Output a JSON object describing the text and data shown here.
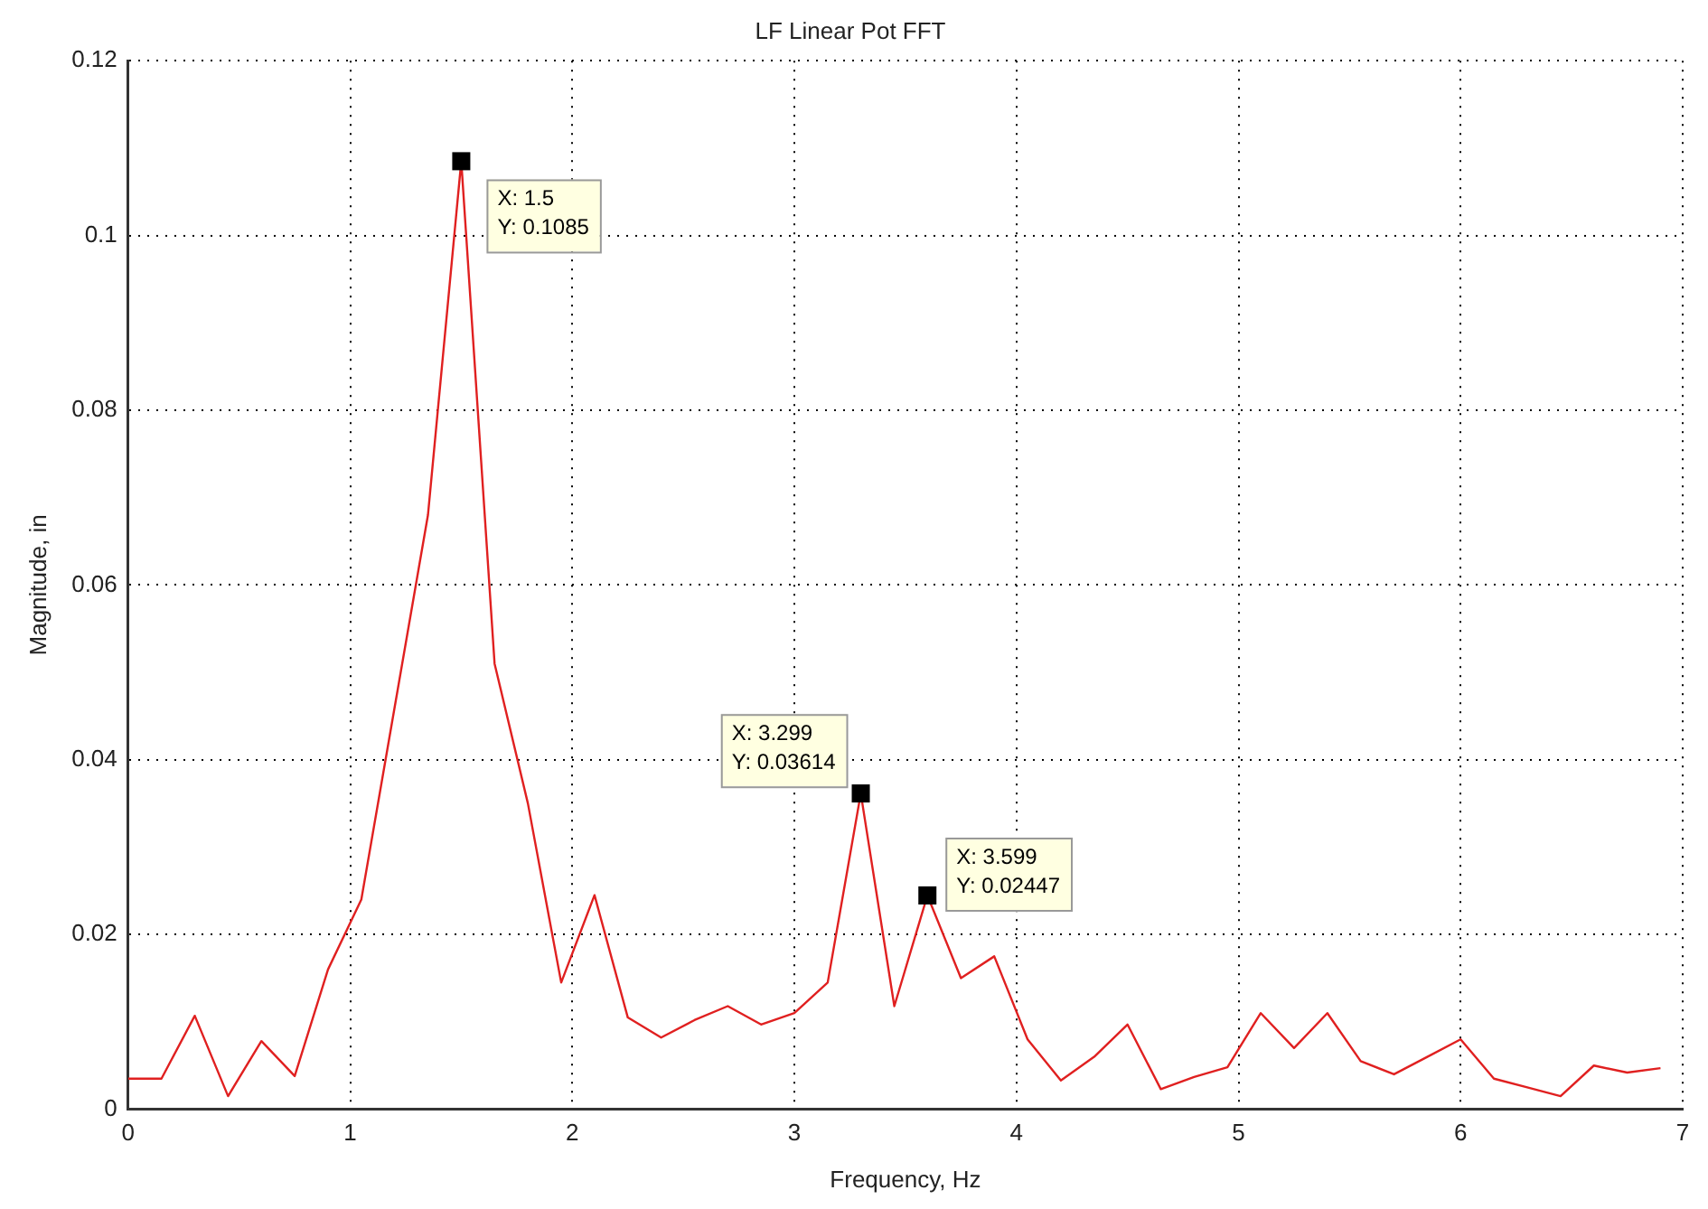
{
  "chart_data": {
    "type": "line",
    "title": "LF Linear Pot FFT",
    "xlabel": "Frequency, Hz",
    "ylabel": "Magnitude, in",
    "x": [
      0,
      0.15,
      0.3,
      0.45,
      0.6,
      0.75,
      0.9,
      1.05,
      1.2,
      1.35,
      1.5,
      1.65,
      1.8,
      1.95,
      2.1,
      2.25,
      2.4,
      2.55,
      2.7,
      2.85,
      3.0,
      3.15,
      3.299,
      3.45,
      3.599,
      3.75,
      3.9,
      4.05,
      4.2,
      4.35,
      4.5,
      4.65,
      4.8,
      4.95,
      5.1,
      5.25,
      5.4,
      5.55,
      5.7,
      5.85,
      6.0,
      6.15,
      6.3,
      6.45,
      6.6,
      6.75,
      6.9
    ],
    "series": [
      {
        "color": "#e02020",
        "values": [
          0.0035,
          0.0035,
          0.0107,
          0.0015,
          0.0078,
          0.0038,
          0.016,
          0.024,
          0.046,
          0.068,
          0.1085,
          0.051,
          0.035,
          0.0145,
          0.0245,
          0.0105,
          0.0082,
          0.0102,
          0.0118,
          0.0097,
          0.011,
          0.0145,
          0.03614,
          0.0118,
          0.02447,
          0.015,
          0.0175,
          0.008,
          0.0033,
          0.006,
          0.0097,
          0.0023,
          0.0037,
          0.0048,
          0.011,
          0.007,
          0.011,
          0.0055,
          0.004,
          0.006,
          0.008,
          0.0035,
          0.0025,
          0.0015,
          0.005,
          0.0042,
          0.0047
        ]
      }
    ],
    "xlim": [
      0,
      7
    ],
    "xticks": [
      0,
      1,
      2,
      3,
      4,
      5,
      6,
      7
    ],
    "ylim": [
      0,
      0.12
    ],
    "yticks": [
      0,
      0.02,
      0.04,
      0.06,
      0.08,
      0.1,
      0.12
    ],
    "grid": true,
    "line_style": "solid",
    "marker": "none",
    "annotations": [
      {
        "text": "X: 1.5\nY: 0.1085",
        "x": 1.5,
        "y": 0.1085
      },
      {
        "text": "X: 3.299\nY: 0.03614",
        "x": 3.299,
        "y": 0.03614
      },
      {
        "text": "X: 3.599\nY: 0.02447",
        "x": 3.599,
        "y": 0.02447
      }
    ]
  }
}
